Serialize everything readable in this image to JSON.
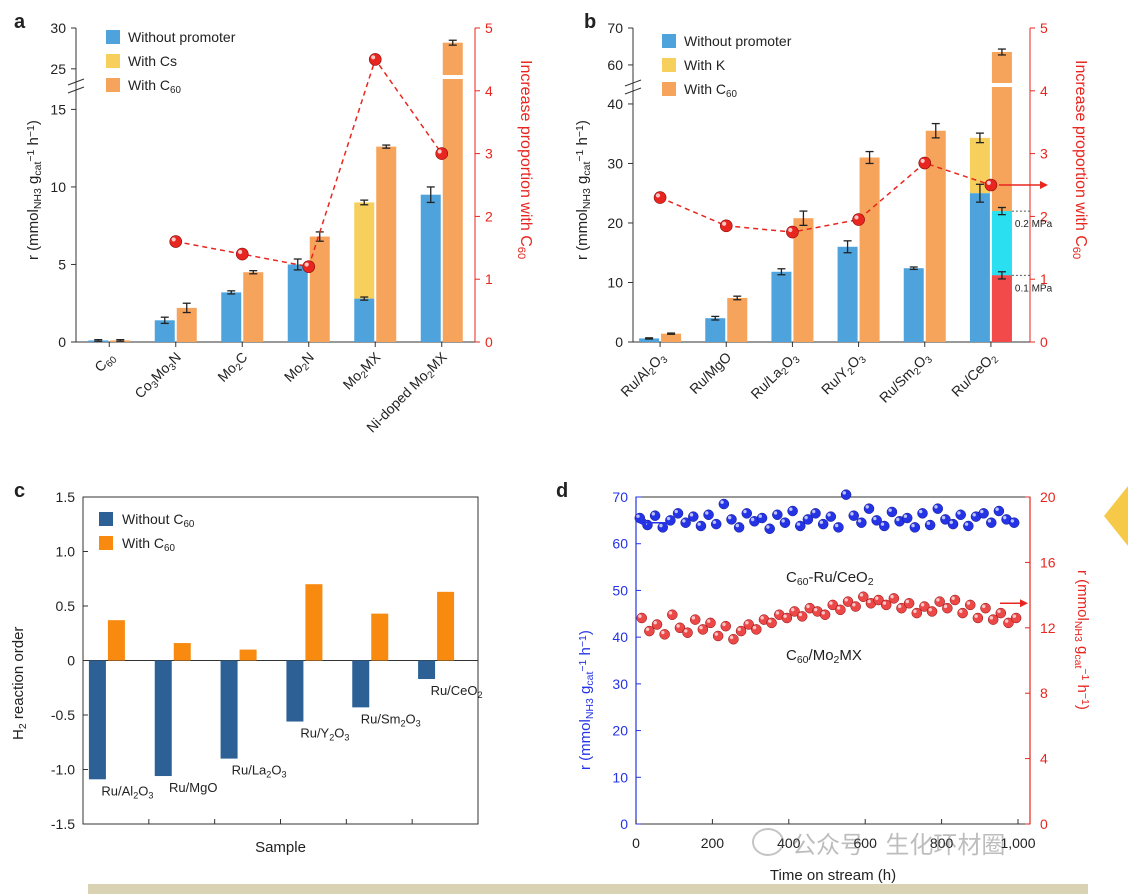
{
  "watermark": "公众号 · 生化环材圈",
  "chart_data": [
    {
      "panel": "a",
      "type": "bar",
      "categories": [
        "C60",
        "Co3Mo3N",
        "Mo2C",
        "Mo2N",
        "Mo2MX",
        "Ni-doped Mo2MX"
      ],
      "category_labels": [
        [
          [
            "C",
            ""
          ],
          [
            "60",
            "sub"
          ]
        ],
        [
          [
            "Co",
            ""
          ],
          [
            "3",
            "sub"
          ],
          [
            "Mo",
            ""
          ],
          [
            "3",
            "sub"
          ],
          [
            "N",
            ""
          ]
        ],
        [
          [
            "Mo",
            ""
          ],
          [
            "2",
            "sub"
          ],
          [
            "C",
            ""
          ]
        ],
        [
          [
            "Mo",
            ""
          ],
          [
            "2",
            "sub"
          ],
          [
            "N",
            ""
          ]
        ],
        [
          [
            "Mo",
            ""
          ],
          [
            "2",
            "sub"
          ],
          [
            "MX",
            ""
          ]
        ],
        [
          [
            "Ni-doped Mo",
            ""
          ],
          [
            "2",
            "sub"
          ],
          [
            "MX",
            ""
          ]
        ]
      ],
      "y_ticks_lower": [
        0,
        5,
        10,
        15
      ],
      "y_ticks_upper": [
        25,
        30
      ],
      "ylim": [
        0,
        30
      ],
      "y_break": [
        15.8,
        24
      ],
      "y2_ticks": [
        0,
        1,
        2,
        3,
        4,
        5
      ],
      "y2lim": [
        0,
        5
      ],
      "ylabel": [
        [
          "r",
          ""
        ],
        [
          " (mmol",
          ""
        ],
        [
          "NH3",
          "sub"
        ],
        [
          " g",
          ""
        ],
        [
          "cat",
          "sub"
        ],
        [
          "−1",
          "sup"
        ],
        [
          " h",
          ""
        ],
        [
          "−1",
          "sup"
        ],
        [
          ")",
          ""
        ]
      ],
      "y2label": [
        [
          "Increase proportion with C",
          ""
        ],
        [
          "60",
          "sub"
        ]
      ],
      "series": [
        {
          "name": [
            [
              "Without promoter",
              ""
            ]
          ],
          "color": "#4ea3dc",
          "values": [
            0.1,
            1.4,
            3.2,
            5.0,
            2.8,
            9.5
          ],
          "errors": [
            0.05,
            0.2,
            0.1,
            0.35,
            0.1,
            0.5
          ]
        },
        {
          "name": [
            [
              "With Cs",
              ""
            ]
          ],
          "color": "#f7cf5c",
          "values": [
            null,
            null,
            null,
            null,
            9.0,
            null
          ],
          "errors": [
            null,
            null,
            null,
            null,
            0.15,
            null
          ]
        },
        {
          "name": [
            [
              "With C",
              ""
            ],
            [
              "60",
              "sub"
            ]
          ],
          "color": "#f6a35b",
          "values": [
            0.1,
            2.2,
            4.5,
            6.8,
            12.6,
            28.2
          ],
          "errors": [
            0.05,
            0.3,
            0.1,
            0.3,
            0.1,
            0.3
          ]
        }
      ],
      "ratio": {
        "color": "#e8261f",
        "values": [
          null,
          1.6,
          1.4,
          1.2,
          4.5,
          3.0
        ]
      }
    },
    {
      "panel": "b",
      "type": "bar",
      "categories": [
        "Ru/Al2O3",
        "Ru/MgO",
        "Ru/La2O3",
        "Ru/Y2O3",
        "Ru/Sm2O3",
        "Ru/CeO2"
      ],
      "category_labels": [
        [
          [
            "Ru/Al",
            ""
          ],
          [
            "2",
            "sub"
          ],
          [
            "O",
            ""
          ],
          [
            "3",
            "sub"
          ]
        ],
        [
          [
            "Ru/MgO",
            ""
          ]
        ],
        [
          [
            "Ru/La",
            ""
          ],
          [
            "2",
            "sub"
          ],
          [
            "O",
            ""
          ],
          [
            "3",
            "sub"
          ]
        ],
        [
          [
            "Ru/Y",
            ""
          ],
          [
            "2",
            "sub"
          ],
          [
            "O",
            ""
          ],
          [
            "3",
            "sub"
          ]
        ],
        [
          [
            "Ru/Sm",
            ""
          ],
          [
            "2",
            "sub"
          ],
          [
            "O",
            ""
          ],
          [
            "3",
            "sub"
          ]
        ],
        [
          [
            "Ru/CeO",
            ""
          ],
          [
            "2",
            "sub"
          ]
        ]
      ],
      "y_ticks_lower": [
        0,
        10,
        20,
        30,
        40
      ],
      "y_ticks_upper": [
        60,
        70
      ],
      "ylim": [
        0,
        70
      ],
      "y_break": [
        41,
        57
      ],
      "y2_ticks": [
        0,
        1,
        2,
        3,
        4,
        5
      ],
      "y2lim": [
        0,
        5
      ],
      "ylabel": [
        [
          "r",
          ""
        ],
        [
          " (mmol",
          ""
        ],
        [
          "NH3",
          "sub"
        ],
        [
          " g",
          ""
        ],
        [
          "cat",
          "sub"
        ],
        [
          "−1",
          "sup"
        ],
        [
          " h",
          ""
        ],
        [
          "−1",
          "sup"
        ],
        [
          ")",
          ""
        ]
      ],
      "y2label": [
        [
          "Increase proportion with C",
          ""
        ],
        [
          "60",
          "sub"
        ]
      ],
      "series": [
        {
          "name": [
            [
              "Without promoter",
              ""
            ]
          ],
          "color": "#4ea3dc",
          "values": [
            0.6,
            4.0,
            11.8,
            16.0,
            12.4,
            25.0
          ],
          "errors": [
            0.1,
            0.3,
            0.5,
            1.0,
            0.2,
            1.5
          ]
        },
        {
          "name": [
            [
              "With K",
              ""
            ]
          ],
          "color": "#f7cf5c",
          "values": [
            null,
            null,
            null,
            null,
            null,
            34.3
          ],
          "errors": [
            null,
            null,
            null,
            null,
            null,
            0.8
          ]
        },
        {
          "name": [
            [
              "With C",
              ""
            ],
            [
              "60",
              "sub"
            ]
          ],
          "color": "#f6a35b",
          "values": [
            1.4,
            7.4,
            20.8,
            31.0,
            35.5,
            63.5
          ],
          "errors": [
            0.1,
            0.3,
            1.2,
            1.0,
            1.2,
            0.8
          ]
        }
      ],
      "pressure_segments": [
        {
          "label": "0.2 MPa",
          "color": "#2ae0f0",
          "from": 11.2,
          "to": 22.0
        },
        {
          "label": "0.1 MPa",
          "color": "#f24a4a",
          "from": 0,
          "to": 11.2
        }
      ],
      "ratio": {
        "color": "#e8261f",
        "values": [
          2.3,
          1.85,
          1.75,
          1.95,
          2.85,
          2.5
        ]
      }
    },
    {
      "panel": "c",
      "type": "bar",
      "xlabel": "Sample",
      "ylabel": [
        [
          "H",
          ""
        ],
        [
          "2",
          "sub"
        ],
        [
          " reaction order",
          ""
        ]
      ],
      "ylim": [
        -1.5,
        1.5
      ],
      "y_ticks": [
        "-1.5",
        "-1.0",
        "-0.5",
        "0",
        "0.5",
        "1.0",
        "1.5"
      ],
      "categories": [
        "Ru/Al2O3",
        "Ru/MgO",
        "Ru/La2O3",
        "Ru/Y2O3",
        "Ru/Sm2O3",
        "Ru/CeO2"
      ],
      "category_labels": [
        [
          [
            "Ru/Al",
            ""
          ],
          [
            "2",
            "sub"
          ],
          [
            "O",
            ""
          ],
          [
            "3",
            "sub"
          ]
        ],
        [
          [
            "Ru/MgO",
            ""
          ]
        ],
        [
          [
            "Ru/La",
            ""
          ],
          [
            "2",
            "sub"
          ],
          [
            "O",
            ""
          ],
          [
            "3",
            "sub"
          ]
        ],
        [
          [
            "Ru/Y",
            ""
          ],
          [
            "2",
            "sub"
          ],
          [
            "O",
            ""
          ],
          [
            "3",
            "sub"
          ]
        ],
        [
          [
            "Ru/Sm",
            ""
          ],
          [
            "2",
            "sub"
          ],
          [
            "O",
            ""
          ],
          [
            "3",
            "sub"
          ]
        ],
        [
          [
            "Ru/CeO",
            ""
          ],
          [
            "2",
            "sub"
          ]
        ]
      ],
      "series": [
        {
          "name": [
            [
              "Without C",
              ""
            ],
            [
              "60",
              "sub"
            ]
          ],
          "color": "#2d6196",
          "values": [
            -1.09,
            -1.06,
            -0.9,
            -0.56,
            -0.43,
            -0.17
          ]
        },
        {
          "name": [
            [
              "With C",
              ""
            ],
            [
              "60",
              "sub"
            ]
          ],
          "color": "#f88a0f",
          "values": [
            0.37,
            0.16,
            0.1,
            0.7,
            0.43,
            0.63
          ]
        }
      ]
    },
    {
      "panel": "d",
      "type": "scatter",
      "xlabel": "Time on stream (h)",
      "xlim": [
        0,
        1000
      ],
      "x_ticks": [
        0,
        200,
        400,
        600,
        800,
        1000
      ],
      "x_tick_labels": [
        "0",
        "200",
        "400",
        "600",
        "800",
        "1,000"
      ],
      "ylim": [
        0,
        70
      ],
      "y_ticks": [
        0,
        10,
        20,
        30,
        40,
        50,
        60,
        70
      ],
      "y2lim": [
        0,
        20
      ],
      "y2_ticks": [
        0,
        4,
        8,
        12,
        16,
        20
      ],
      "ylabel": [
        [
          "r",
          ""
        ],
        [
          " (mmol",
          ""
        ],
        [
          "NH3",
          "sub"
        ],
        [
          " g",
          ""
        ],
        [
          "cat",
          "sub"
        ],
        [
          "−1",
          "sup"
        ],
        [
          " h",
          ""
        ],
        [
          "−1",
          "sup"
        ],
        [
          ")",
          ""
        ]
      ],
      "y2label": [
        [
          "r",
          ""
        ],
        [
          " (mmol",
          ""
        ],
        [
          "NH3",
          "sub"
        ],
        [
          " g",
          ""
        ],
        [
          "cat",
          "sub"
        ],
        [
          "−1",
          "sup"
        ],
        [
          " h",
          ""
        ],
        [
          "−1",
          "sup"
        ],
        [
          ")",
          ""
        ]
      ],
      "series": [
        {
          "name": [
            [
              "C",
              ""
            ],
            [
              "60",
              "sub"
            ],
            [
              "-Ru/CeO",
              ""
            ],
            [
              "2",
              "sub"
            ]
          ],
          "color": "#2433e6",
          "axis": "left",
          "x": [
            10,
            30,
            50,
            70,
            90,
            110,
            130,
            150,
            170,
            190,
            210,
            230,
            250,
            270,
            290,
            310,
            330,
            350,
            370,
            390,
            410,
            430,
            450,
            470,
            490,
            510,
            530,
            550,
            570,
            590,
            610,
            630,
            650,
            670,
            690,
            710,
            730,
            750,
            770,
            790,
            810,
            830,
            850,
            870,
            890,
            910,
            930,
            950,
            970,
            990
          ],
          "y": [
            65.5,
            64.0,
            66.0,
            63.5,
            65.0,
            66.5,
            64.5,
            65.8,
            63.8,
            66.2,
            64.2,
            68.5,
            65.2,
            63.5,
            66.5,
            64.8,
            65.5,
            63.2,
            66.2,
            64.5,
            67.0,
            63.8,
            65.2,
            66.5,
            64.2,
            65.8,
            63.5,
            70.5,
            66.0,
            64.5,
            67.5,
            65.0,
            63.8,
            66.8,
            64.8,
            65.5,
            63.5,
            66.5,
            64.0,
            67.5,
            65.2,
            64.2,
            66.2,
            63.8,
            65.8,
            66.5,
            64.5,
            67.0,
            65.2,
            64.5
          ]
        },
        {
          "name": [
            [
              "C",
              ""
            ],
            [
              "60",
              "sub"
            ],
            [
              "/Mo",
              ""
            ],
            [
              "2",
              "sub"
            ],
            [
              "MX",
              ""
            ]
          ],
          "color": "#ec4848",
          "axis": "right",
          "x": [
            15,
            35,
            55,
            75,
            95,
            115,
            135,
            155,
            175,
            195,
            215,
            235,
            255,
            275,
            295,
            315,
            335,
            355,
            375,
            395,
            415,
            435,
            455,
            475,
            495,
            515,
            535,
            555,
            575,
            595,
            615,
            635,
            655,
            675,
            695,
            715,
            735,
            755,
            775,
            795,
            815,
            835,
            855,
            875,
            895,
            915,
            935,
            955,
            975,
            995
          ],
          "y": [
            12.6,
            11.8,
            12.2,
            11.6,
            12.8,
            12.0,
            11.7,
            12.5,
            11.9,
            12.3,
            11.5,
            12.1,
            11.3,
            11.8,
            12.2,
            11.9,
            12.5,
            12.3,
            12.8,
            12.6,
            13.0,
            12.7,
            13.2,
            13.0,
            12.8,
            13.4,
            13.1,
            13.6,
            13.3,
            13.9,
            13.5,
            13.7,
            13.4,
            13.8,
            13.2,
            13.5,
            12.9,
            13.3,
            13.0,
            13.6,
            13.2,
            13.7,
            12.9,
            13.4,
            12.6,
            13.2,
            12.5,
            12.9,
            12.3,
            12.6
          ]
        }
      ]
    }
  ]
}
